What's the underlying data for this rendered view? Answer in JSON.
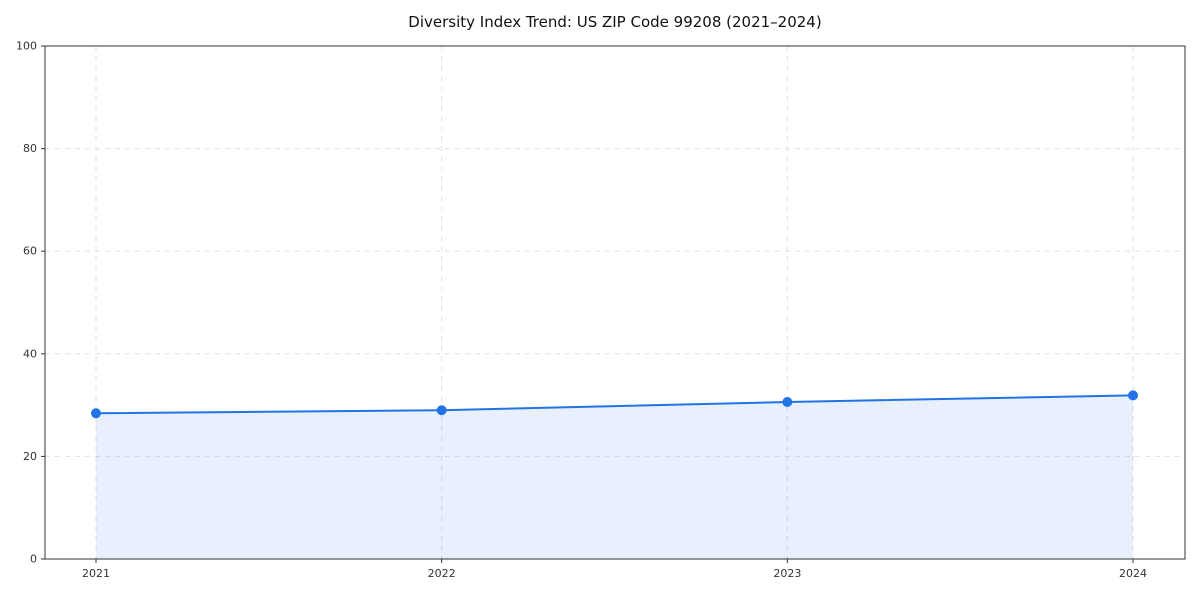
{
  "title": "Diversity Index Trend: US ZIP Code 99208 (2021–2024)",
  "chart_data": {
    "type": "area",
    "title": "Diversity Index Trend: US ZIP Code 99208 (2021–2024)",
    "x": [
      2021,
      2022,
      2023,
      2024
    ],
    "categories": [
      "2021",
      "2022",
      "2023",
      "2024"
    ],
    "series": [
      {
        "name": "Diversity Index",
        "values": [
          28.4,
          29.0,
          30.6,
          31.9
        ]
      }
    ],
    "xlabel": "",
    "ylabel": "",
    "ylim": [
      0,
      100
    ],
    "yticks": [
      0,
      20,
      40,
      60,
      80,
      100
    ],
    "grid": true,
    "grid_style": "dashed",
    "legend": "none",
    "colors": {
      "line": "#2273e6",
      "marker": "#2273e6",
      "fill": "#2273e6",
      "grid": "#e0e0e0",
      "spine": "#333333",
      "tick_label": "#333333",
      "background": "#ffffff"
    },
    "fill_opacity": 0.11,
    "marker_radius": 5,
    "line_width": 2
  }
}
